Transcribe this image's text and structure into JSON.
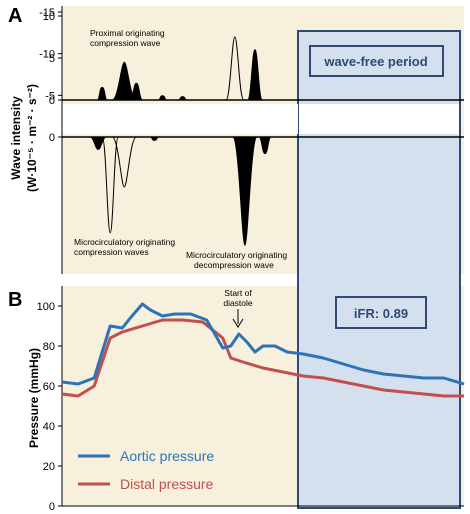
{
  "chart_data": [
    {
      "panel": "A",
      "type": "area",
      "ylabel": "Wave intensity (W·10⁻⁵ · m⁻² · s⁻²)",
      "ylabel_lines": [
        "Wave intensity",
        "(W·10⁻⁵ · m⁻² · s⁻²)"
      ],
      "upper": {
        "yticks": [
          0,
          5,
          10
        ],
        "ylim": [
          0,
          11
        ]
      },
      "lower": {
        "yticks": [
          0,
          -5,
          -10,
          -15
        ],
        "ylim": [
          -16,
          0
        ]
      },
      "x_range": [
        0,
        1
      ],
      "series": [
        {
          "values": [
            {
              "x": 0.0,
              "upper": 0,
              "lower": 0
            },
            {
              "x": 0.05,
              "upper": 0,
              "lower": -0.3
            },
            {
              "x": 0.1,
              "upper": 1.5,
              "lower": -1.5
            },
            {
              "x": 0.13,
              "upper": 1,
              "lower": -11.5
            },
            {
              "x": 0.15,
              "upper": 4.5,
              "lower": -2
            },
            {
              "x": 0.175,
              "upper": 2.5,
              "lower": -6
            },
            {
              "x": 0.26,
              "upper": 0.3,
              "lower": -0.3
            },
            {
              "x": 0.39,
              "upper": 0.3,
              "lower": -0.3
            },
            {
              "x": 0.43,
              "upper": 7.5,
              "lower": -0.3
            },
            {
              "x": 0.48,
              "upper": 6,
              "lower": -13
            },
            {
              "x": 0.51,
              "upper": 0,
              "lower": -2
            },
            {
              "x": 0.6,
              "upper": 0,
              "lower": -0.2
            },
            {
              "x": 1.0,
              "upper": 0,
              "lower": 0
            }
          ]
        }
      ],
      "annotations": [
        "Proximal originating",
        "compression wave",
        "Microcirculatory originating",
        "compression waves",
        "Microcirculatory originating",
        "decompression wave"
      ],
      "box_label": "wave-free period"
    },
    {
      "panel": "B",
      "type": "line",
      "ylabel": "Pressure (mmHg)",
      "yticks": [
        0,
        20,
        40,
        60,
        80,
        100
      ],
      "ylim": [
        0,
        110
      ],
      "x_range": [
        0,
        1
      ],
      "series": [
        {
          "name": "Aortic pressure",
          "color": "#2f73b7",
          "x": [
            0,
            0.04,
            0.08,
            0.12,
            0.15,
            0.17,
            0.2,
            0.22,
            0.25,
            0.28,
            0.32,
            0.36,
            0.4,
            0.42,
            0.44,
            0.46,
            0.48,
            0.5,
            0.53,
            0.56,
            0.6,
            0.65,
            0.7,
            0.75,
            0.8,
            0.85,
            0.9,
            0.95,
            1.0
          ],
          "values": [
            62,
            61,
            64,
            90,
            89,
            94,
            101,
            98,
            95,
            96,
            96,
            93,
            79,
            80,
            86,
            82,
            77,
            80,
            80,
            77,
            76,
            74,
            71,
            68,
            66,
            65,
            64,
            64,
            61
          ]
        },
        {
          "name": "Distal pressure",
          "color": "#c0504d",
          "x": [
            0,
            0.04,
            0.08,
            0.12,
            0.15,
            0.2,
            0.25,
            0.3,
            0.35,
            0.4,
            0.42,
            0.45,
            0.5,
            0.55,
            0.6,
            0.65,
            0.7,
            0.75,
            0.8,
            0.85,
            0.9,
            0.95,
            1.0
          ],
          "values": [
            56,
            55,
            60,
            84,
            87,
            90,
            93,
            93,
            92,
            84,
            74,
            72,
            69,
            67,
            65,
            64,
            62,
            60,
            58,
            57,
            56,
            55,
            55
          ]
        }
      ],
      "annotations": [
        "Start of",
        "diastole"
      ],
      "box_label": "iFR: 0.89"
    }
  ],
  "wave_free_period": {
    "x_start": 0.6,
    "x_end": 1.0
  }
}
